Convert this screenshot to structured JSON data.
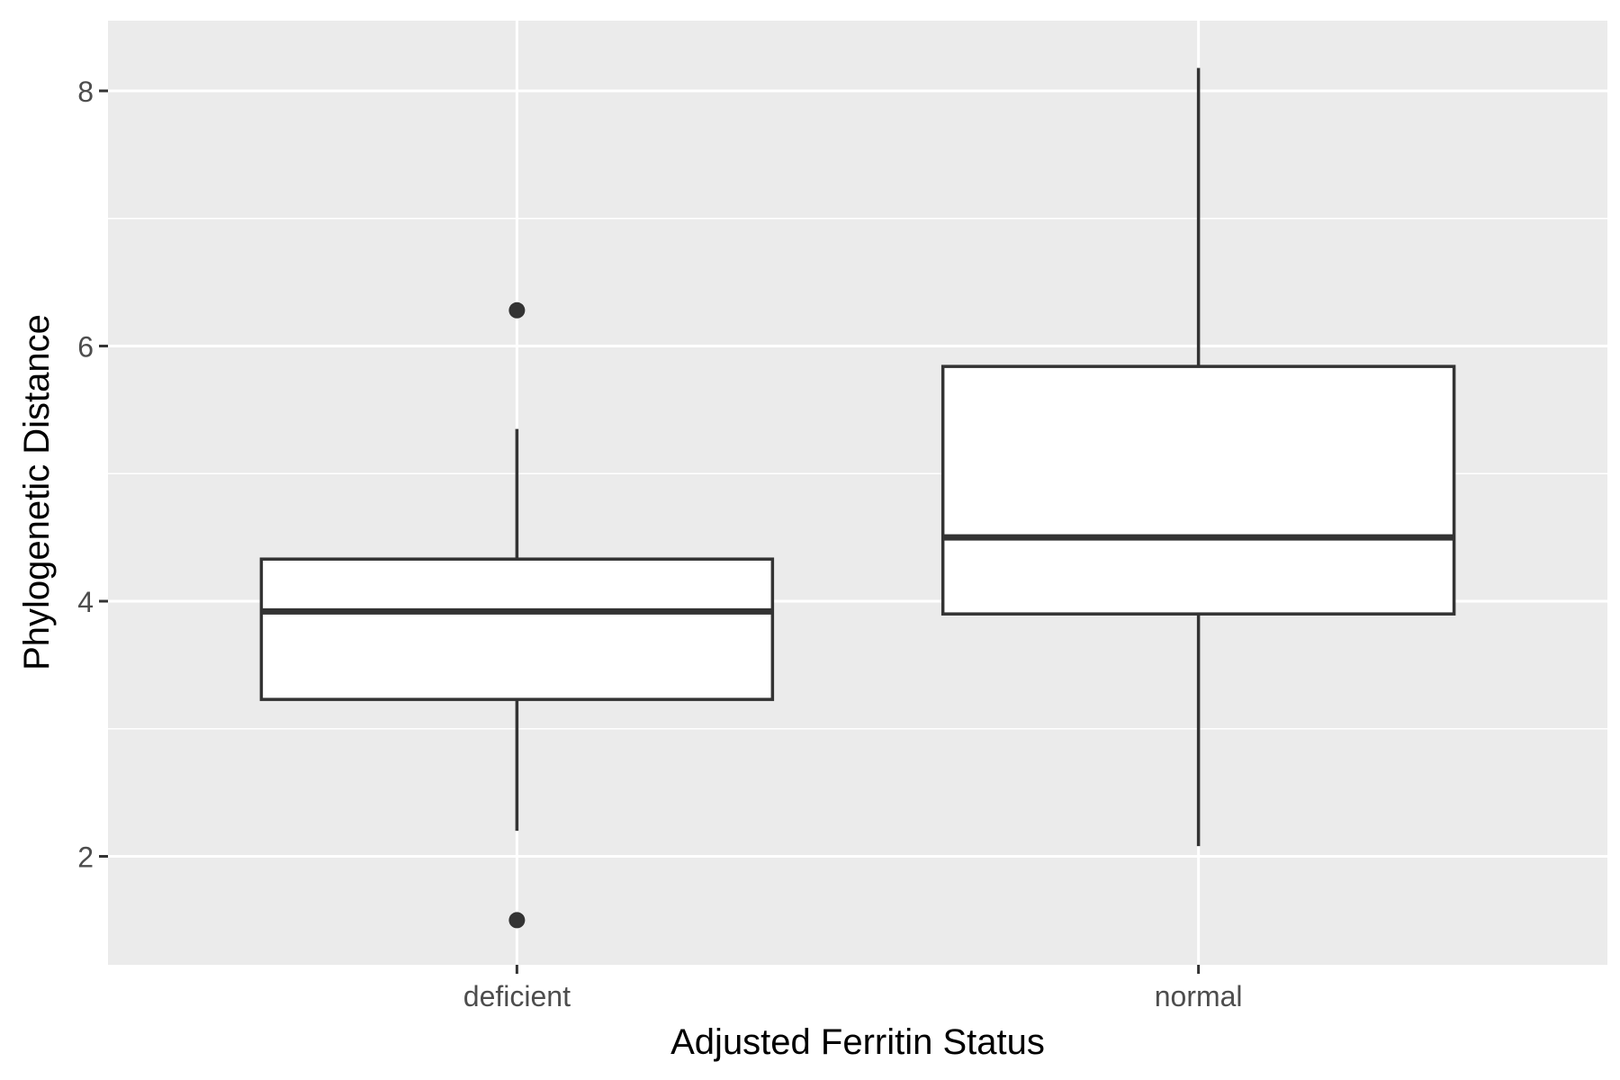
{
  "chart_data": {
    "type": "box",
    "title": "",
    "xlabel": "Adjusted Ferritin Status",
    "ylabel": "Phylogenetic Distance",
    "categories": [
      "deficient",
      "normal"
    ],
    "ylim": [
      1.15,
      8.55
    ],
    "y_ticks": [
      2,
      4,
      6,
      8
    ],
    "y_tick_labels": [
      "2",
      "4",
      "6",
      "8"
    ],
    "grid": true,
    "legend": "none",
    "boxes": [
      {
        "category": "deficient",
        "whisker_low": 2.2,
        "q1": 3.23,
        "median": 3.92,
        "q3": 4.33,
        "whisker_high": 5.35,
        "outliers": [
          6.28,
          1.5
        ]
      },
      {
        "category": "normal",
        "whisker_low": 2.08,
        "q1": 3.9,
        "median": 4.5,
        "q3": 5.84,
        "whisker_high": 8.18,
        "outliers": []
      }
    ],
    "colors": {
      "panel": "#ebebeb",
      "grid": "#ffffff",
      "box_fill": "#ffffff",
      "box_line": "#333333",
      "tick_text": "#4d4d4d",
      "axis_title": "#000000"
    }
  }
}
